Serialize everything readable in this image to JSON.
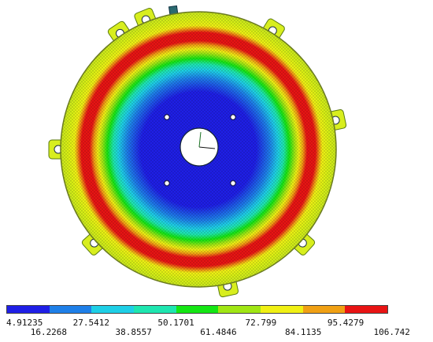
{
  "contour": {
    "colors": [
      "#1f1fe6",
      "#1e7fe8",
      "#1ecfe6",
      "#1ee6b0",
      "#14e614",
      "#a0e614",
      "#f0f014",
      "#f0a014",
      "#e81414"
    ],
    "labels": [
      "4.91235",
      "16.2268",
      "27.5412",
      "38.8557",
      "50.1701",
      "61.4846",
      "72.799",
      "84.1135",
      "95.4279",
      "106.742"
    ]
  },
  "model": {
    "bolt_hole_count": 8,
    "center_hole": true,
    "inner_hole_count": 4
  }
}
